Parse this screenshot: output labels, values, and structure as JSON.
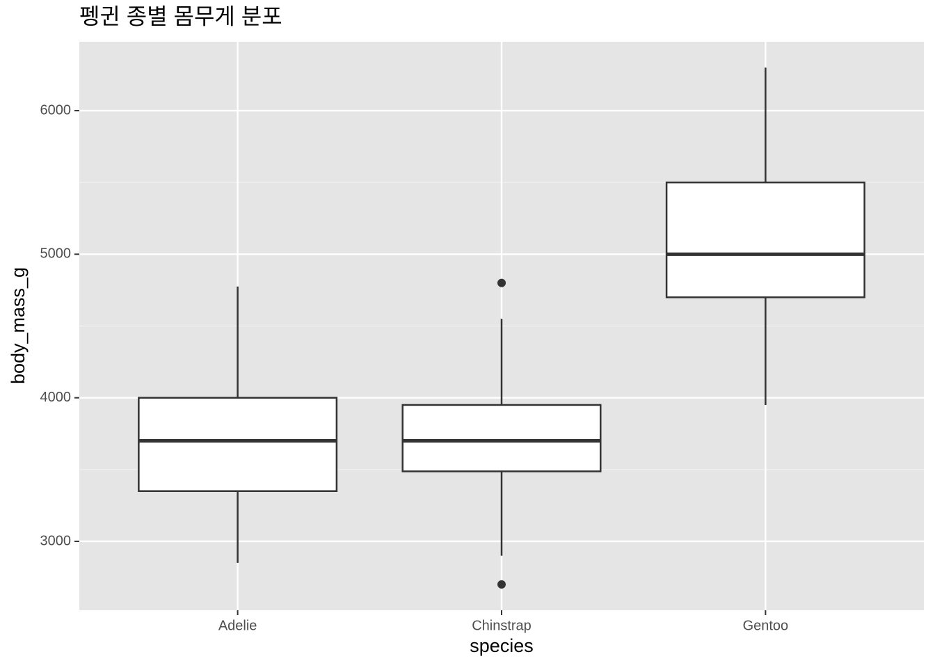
{
  "chart_data": {
    "type": "boxplot",
    "title": "펭귄 종별 몸무게 분포",
    "x_label": "species",
    "y_label": "body_mass_g",
    "categories": [
      "Adelie",
      "Chinstrap",
      "Gentoo"
    ],
    "boxes": [
      {
        "min": 2850,
        "q1": 3350,
        "median": 3700,
        "q3": 4000,
        "max": 4775,
        "outliers": []
      },
      {
        "min": 2900,
        "q1": 3487.5,
        "median": 3700,
        "q3": 3950,
        "max": 4550,
        "outliers": [
          4800,
          2700
        ]
      },
      {
        "min": 3950,
        "q1": 4700,
        "median": 5000,
        "q3": 5500,
        "max": 6300,
        "outliers": []
      }
    ],
    "ylim": [
      2520,
      6480
    ],
    "yticks": [
      3000,
      4000,
      5000,
      6000
    ],
    "minor_yticks": [
      3500,
      4500,
      5500
    ],
    "grid": true,
    "panel_color": "#e5e5e5",
    "box_fill": "#ffffff",
    "line_color": "#333333"
  }
}
